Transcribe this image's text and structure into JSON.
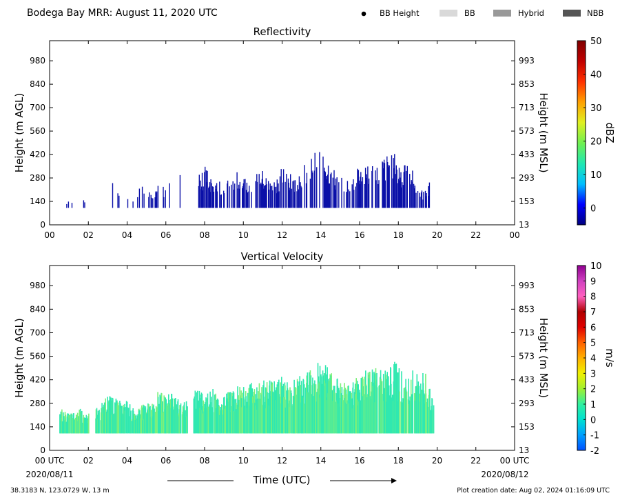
{
  "header": {
    "title": "Bodega Bay MRR:  August 11, 2020 UTC",
    "legend": [
      {
        "label": "BB Height",
        "kind": "dot",
        "color": "#000000"
      },
      {
        "label": "BB",
        "kind": "box",
        "color": "#d9d9d9"
      },
      {
        "label": "Hybrid",
        "kind": "box",
        "color": "#999999"
      },
      {
        "label": "NBB",
        "kind": "box",
        "color": "#555555"
      }
    ]
  },
  "footer": {
    "location": "38.3183 N, 123.0729 W, 13 m",
    "creation": "Plot creation date: Aug 02, 2024 01:16:09 UTC",
    "date_start": "2020/08/11",
    "date_end": "2020/08/12",
    "xlabel": "Time (UTC)"
  },
  "chart_data": [
    {
      "type": "heatmap",
      "title": "Reflectivity",
      "xlabel": "Time (UTC)",
      "ylabel": "Height (m AGL)",
      "ylabel_right": "Height (m MSL)",
      "xlim": [
        0,
        24
      ],
      "ylim": [
        0,
        1100
      ],
      "x_ticks": [
        "00",
        "02",
        "04",
        "06",
        "08",
        "10",
        "12",
        "14",
        "16",
        "18",
        "20",
        "22",
        "00"
      ],
      "y_ticks": [
        0,
        140,
        280,
        420,
        560,
        700,
        840,
        980
      ],
      "y_ticks_right": [
        13,
        153,
        293,
        433,
        573,
        713,
        853,
        993
      ],
      "colorbar": {
        "label": "dBZ",
        "min": -5,
        "max": 50,
        "ticks": [
          0,
          10,
          20,
          30,
          40,
          50
        ],
        "colors": [
          "#00007f",
          "#0000ff",
          "#00bfff",
          "#20e8b0",
          "#70f050",
          "#e0f020",
          "#ffa000",
          "#ff3000",
          "#c00000",
          "#7f0000"
        ]
      },
      "fill_color": "#0a10a8",
      "gaps": [
        [
          2.0,
          2.9
        ],
        [
          7.0,
          7.6
        ]
      ],
      "echoes": [
        {
          "t": 0.8,
          "top": 140
        },
        {
          "t": 1.9,
          "top": 150
        },
        {
          "t": 2.2,
          "top": 130
        },
        {
          "t": 2.35,
          "top": 150
        },
        {
          "t": 3.05,
          "top": 270
        },
        {
          "t": 3.3,
          "top": 250
        },
        {
          "t": 3.6,
          "top": 255
        },
        {
          "t": 3.8,
          "top": 200
        },
        {
          "t": 4.0,
          "top": 190
        },
        {
          "t": 4.3,
          "top": 160
        },
        {
          "t": 4.9,
          "top": 270
        },
        {
          "t": 5.3,
          "top": 190
        },
        {
          "t": 5.6,
          "top": 260
        },
        {
          "t": 5.9,
          "top": 230
        },
        {
          "t": 6.2,
          "top": 260
        },
        {
          "t": 6.6,
          "top": 300
        },
        {
          "t": 7.8,
          "top": 300
        },
        {
          "t": 8.0,
          "top": 360
        },
        {
          "t": 8.3,
          "top": 300
        },
        {
          "t": 8.9,
          "top": 250
        },
        {
          "t": 9.2,
          "top": 300
        },
        {
          "t": 9.5,
          "top": 320
        },
        {
          "t": 9.9,
          "top": 350
        },
        {
          "t": 10.3,
          "top": 290
        },
        {
          "t": 10.6,
          "top": 360
        },
        {
          "t": 10.9,
          "top": 340
        },
        {
          "t": 11.2,
          "top": 290
        },
        {
          "t": 11.6,
          "top": 280
        },
        {
          "t": 12.0,
          "top": 350
        },
        {
          "t": 12.3,
          "top": 320
        },
        {
          "t": 12.6,
          "top": 280
        },
        {
          "t": 12.9,
          "top": 360
        },
        {
          "t": 13.2,
          "top": 380
        },
        {
          "t": 13.6,
          "top": 450
        },
        {
          "t": 13.8,
          "top": 490
        },
        {
          "t": 14.0,
          "top": 460
        },
        {
          "t": 14.3,
          "top": 420
        },
        {
          "t": 14.6,
          "top": 350
        },
        {
          "t": 14.9,
          "top": 290
        },
        {
          "t": 15.3,
          "top": 300
        },
        {
          "t": 15.6,
          "top": 290
        },
        {
          "t": 16.0,
          "top": 380
        },
        {
          "t": 16.4,
          "top": 360
        },
        {
          "t": 16.9,
          "top": 360
        },
        {
          "t": 17.2,
          "top": 410
        },
        {
          "t": 17.5,
          "top": 460
        },
        {
          "t": 17.9,
          "top": 420
        },
        {
          "t": 18.2,
          "top": 350
        },
        {
          "t": 18.6,
          "top": 380
        },
        {
          "t": 19.0,
          "top": 220
        },
        {
          "t": 19.3,
          "top": 200
        },
        {
          "t": 19.6,
          "top": 270
        }
      ]
    },
    {
      "type": "heatmap",
      "title": "Vertical Velocity",
      "xlabel": "Time (UTC)",
      "ylabel": "Height (m AGL)",
      "ylabel_right": "Height (m MSL)",
      "xlim": [
        0,
        24
      ],
      "ylim": [
        0,
        1100
      ],
      "x_ticks": [
        "00 UTC",
        "02",
        "04",
        "06",
        "08",
        "10",
        "12",
        "14",
        "16",
        "18",
        "20",
        "22",
        "00 UTC"
      ],
      "y_ticks": [
        0,
        140,
        280,
        420,
        560,
        700,
        840,
        980
      ],
      "y_ticks_right": [
        13,
        153,
        293,
        433,
        573,
        713,
        853,
        993
      ],
      "colorbar": {
        "label": "m/s",
        "min": -2,
        "max": 10,
        "ticks": [
          -2,
          -1,
          0,
          1,
          2,
          3,
          4,
          5,
          6,
          7,
          8,
          9,
          10
        ],
        "colors": [
          "#0050ff",
          "#00a0ff",
          "#00e0d0",
          "#30f0a0",
          "#a0f030",
          "#f0f000",
          "#ffb000",
          "#ff6000",
          "#e00000",
          "#b00000",
          "#ff60c0",
          "#d040c0",
          "#900090"
        ]
      },
      "fill_color": "#30e8b0",
      "gaps": [
        [
          2.0,
          2.3
        ],
        [
          7.1,
          7.4
        ]
      ],
      "echoes": [
        {
          "t": 0.5,
          "top": 250
        },
        {
          "t": 1.0,
          "top": 230
        },
        {
          "t": 1.5,
          "top": 260
        },
        {
          "t": 1.8,
          "top": 210
        },
        {
          "t": 2.5,
          "top": 260
        },
        {
          "t": 2.9,
          "top": 320
        },
        {
          "t": 3.3,
          "top": 330
        },
        {
          "t": 3.7,
          "top": 300
        },
        {
          "t": 4.0,
          "top": 300
        },
        {
          "t": 4.4,
          "top": 230
        },
        {
          "t": 4.8,
          "top": 280
        },
        {
          "t": 5.2,
          "top": 280
        },
        {
          "t": 5.6,
          "top": 370
        },
        {
          "t": 6.0,
          "top": 340
        },
        {
          "t": 6.4,
          "top": 360
        },
        {
          "t": 6.8,
          "top": 280
        },
        {
          "t": 7.6,
          "top": 380
        },
        {
          "t": 8.0,
          "top": 350
        },
        {
          "t": 8.4,
          "top": 370
        },
        {
          "t": 8.8,
          "top": 300
        },
        {
          "t": 9.2,
          "top": 350
        },
        {
          "t": 9.6,
          "top": 400
        },
        {
          "t": 10.0,
          "top": 380
        },
        {
          "t": 10.4,
          "top": 420
        },
        {
          "t": 10.8,
          "top": 400
        },
        {
          "t": 11.2,
          "top": 430
        },
        {
          "t": 11.6,
          "top": 420
        },
        {
          "t": 12.0,
          "top": 440
        },
        {
          "t": 12.4,
          "top": 400
        },
        {
          "t": 12.8,
          "top": 450
        },
        {
          "t": 13.2,
          "top": 470
        },
        {
          "t": 13.6,
          "top": 500
        },
        {
          "t": 13.9,
          "top": 530
        },
        {
          "t": 14.2,
          "top": 510
        },
        {
          "t": 14.6,
          "top": 460
        },
        {
          "t": 15.0,
          "top": 420
        },
        {
          "t": 15.4,
          "top": 400
        },
        {
          "t": 15.8,
          "top": 440
        },
        {
          "t": 16.2,
          "top": 480
        },
        {
          "t": 16.6,
          "top": 500
        },
        {
          "t": 17.0,
          "top": 500
        },
        {
          "t": 17.4,
          "top": 480
        },
        {
          "t": 17.8,
          "top": 530
        },
        {
          "t": 18.2,
          "top": 470
        },
        {
          "t": 18.6,
          "top": 490
        },
        {
          "t": 19.0,
          "top": 460
        },
        {
          "t": 19.4,
          "top": 460
        },
        {
          "t": 19.8,
          "top": 300
        }
      ]
    }
  ]
}
